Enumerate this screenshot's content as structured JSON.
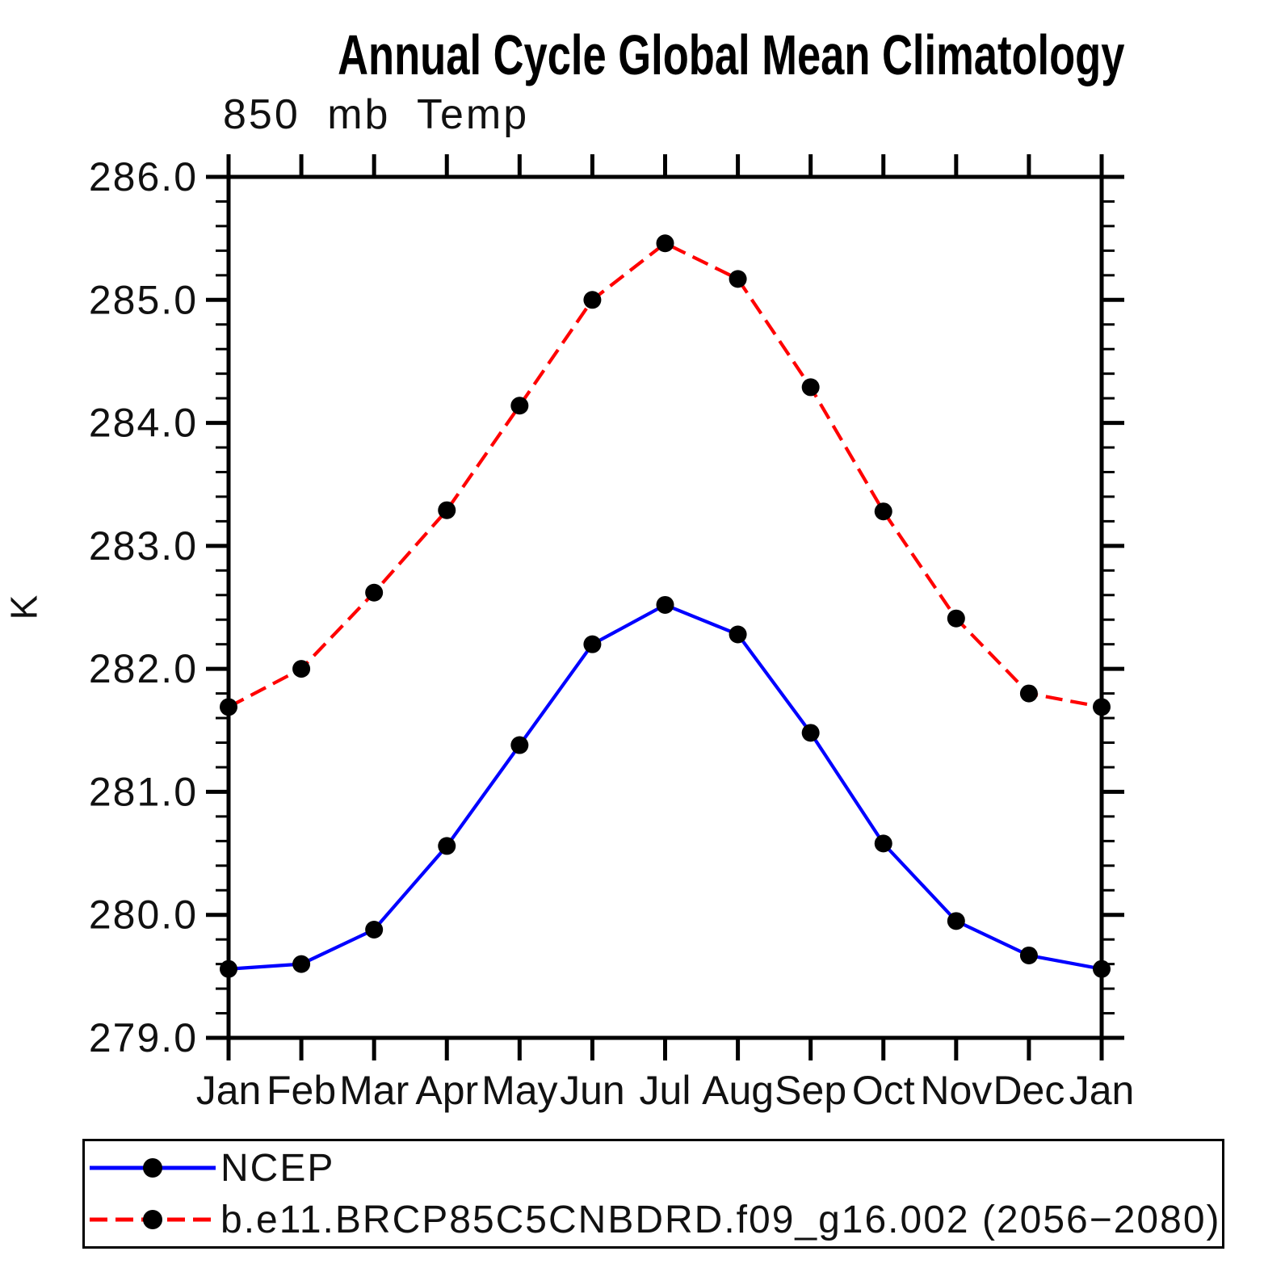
{
  "chart_data": {
    "type": "line",
    "title": "Annual Cycle Global Mean Climatology",
    "subtitle": "850 mb Temp",
    "ylabel": "K",
    "xlabel": "",
    "categories": [
      "Jan",
      "Feb",
      "Mar",
      "Apr",
      "May",
      "Jun",
      "Jul",
      "Aug",
      "Sep",
      "Oct",
      "Nov",
      "Dec",
      "Jan"
    ],
    "ylim": [
      279.0,
      286.0
    ],
    "y_major_step": 1.0,
    "y_minor_step": 0.2,
    "y_tick_labels": [
      "279.0",
      "280.0",
      "281.0",
      "282.0",
      "283.0",
      "284.0",
      "285.0",
      "286.0"
    ],
    "grid": false,
    "legend_position": "bottom",
    "series": [
      {
        "name": "NCEP",
        "color": "#0000ff",
        "line_style": "solid",
        "marker": "circle",
        "marker_color": "#000000",
        "values": [
          279.56,
          279.6,
          279.88,
          280.56,
          281.38,
          282.2,
          282.52,
          282.28,
          281.48,
          280.58,
          279.95,
          279.67,
          279.56
        ]
      },
      {
        "name": "b.e11.BRCP85C5CNBDRD.f09_g16.002 (2056−2080)",
        "color": "#ff0000",
        "line_style": "dashed",
        "marker": "circle",
        "marker_color": "#000000",
        "values": [
          281.69,
          282.0,
          282.62,
          283.29,
          284.14,
          285.0,
          285.46,
          285.17,
          284.29,
          283.28,
          282.41,
          281.8,
          281.69
        ]
      }
    ],
    "colors": {
      "axis": "#000000",
      "background": "#ffffff"
    }
  }
}
